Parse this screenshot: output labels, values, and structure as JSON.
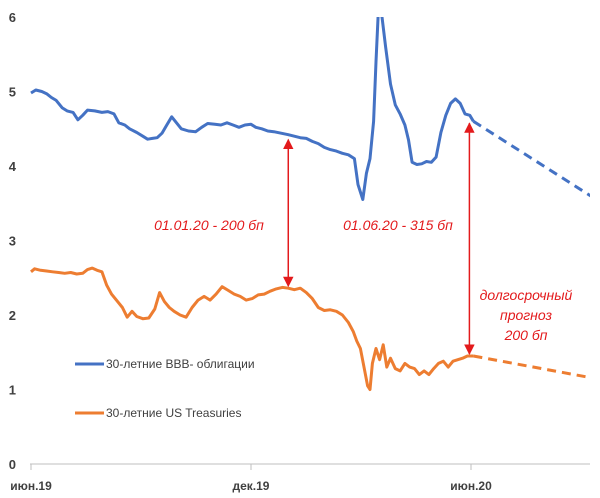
{
  "chart_data": {
    "type": "line",
    "title": "",
    "xlabel": "",
    "ylabel": "",
    "ylim": [
      0,
      6
    ],
    "yticks": [
      "0",
      "1",
      "2",
      "3",
      "4",
      "5",
      "6"
    ],
    "xticks": [
      {
        "label": "июн.19",
        "x": "2019-06"
      },
      {
        "label": "дек.19",
        "x": "2019-12"
      },
      {
        "label": "июн.20",
        "x": "2020-06"
      }
    ],
    "grid": false,
    "legend_position": "lower-left",
    "series": [
      {
        "name": "30-летние BBB- облигации",
        "color": "#4472c4",
        "style": "solid",
        "points": [
          [
            "2019-06-01",
            4.98
          ],
          [
            "2019-06-05",
            5.02
          ],
          [
            "2019-06-10",
            5.0
          ],
          [
            "2019-06-14",
            4.97
          ],
          [
            "2019-06-18",
            4.92
          ],
          [
            "2019-06-22",
            4.88
          ],
          [
            "2019-06-27",
            4.78
          ],
          [
            "2019-07-01",
            4.74
          ],
          [
            "2019-07-06",
            4.72
          ],
          [
            "2019-07-10",
            4.62
          ],
          [
            "2019-07-14",
            4.68
          ],
          [
            "2019-07-18",
            4.75
          ],
          [
            "2019-07-24",
            4.74
          ],
          [
            "2019-07-30",
            4.72
          ],
          [
            "2019-08-04",
            4.73
          ],
          [
            "2019-08-09",
            4.7
          ],
          [
            "2019-08-13",
            4.58
          ],
          [
            "2019-08-18",
            4.55
          ],
          [
            "2019-08-22",
            4.5
          ],
          [
            "2019-08-28",
            4.45
          ],
          [
            "2019-09-02",
            4.4
          ],
          [
            "2019-09-06",
            4.36
          ],
          [
            "2019-09-10",
            4.37
          ],
          [
            "2019-09-14",
            4.38
          ],
          [
            "2019-09-18",
            4.44
          ],
          [
            "2019-09-22",
            4.55
          ],
          [
            "2019-09-26",
            4.66
          ],
          [
            "2019-09-30",
            4.58
          ],
          [
            "2019-10-04",
            4.5
          ],
          [
            "2019-10-10",
            4.47
          ],
          [
            "2019-10-16",
            4.46
          ],
          [
            "2019-10-21",
            4.52
          ],
          [
            "2019-10-26",
            4.57
          ],
          [
            "2019-11-01",
            4.56
          ],
          [
            "2019-11-06",
            4.55
          ],
          [
            "2019-11-11",
            4.58
          ],
          [
            "2019-11-16",
            4.55
          ],
          [
            "2019-11-21",
            4.52
          ],
          [
            "2019-11-26",
            4.55
          ],
          [
            "2019-12-01",
            4.56
          ],
          [
            "2019-12-05",
            4.52
          ],
          [
            "2019-12-10",
            4.5
          ],
          [
            "2019-12-15",
            4.47
          ],
          [
            "2019-12-20",
            4.46
          ],
          [
            "2019-12-26",
            4.44
          ],
          [
            "2020-01-01",
            4.42
          ],
          [
            "2020-01-06",
            4.4
          ],
          [
            "2020-01-11",
            4.38
          ],
          [
            "2020-01-16",
            4.37
          ],
          [
            "2020-01-21",
            4.33
          ],
          [
            "2020-01-26",
            4.3
          ],
          [
            "2020-01-31",
            4.25
          ],
          [
            "2020-02-05",
            4.22
          ],
          [
            "2020-02-10",
            4.2
          ],
          [
            "2020-02-15",
            4.17
          ],
          [
            "2020-02-20",
            4.15
          ],
          [
            "2020-02-25",
            4.1
          ],
          [
            "2020-02-28",
            3.75
          ],
          [
            "2020-03-03",
            3.55
          ],
          [
            "2020-03-06",
            3.9
          ],
          [
            "2020-03-09",
            4.1
          ],
          [
            "2020-03-12",
            4.6
          ],
          [
            "2020-03-14",
            5.4
          ],
          [
            "2020-03-16",
            6.1
          ],
          [
            "2020-03-19",
            6.0
          ],
          [
            "2020-03-22",
            5.6
          ],
          [
            "2020-03-26",
            5.1
          ],
          [
            "2020-03-30",
            4.82
          ],
          [
            "2020-04-03",
            4.7
          ],
          [
            "2020-04-07",
            4.55
          ],
          [
            "2020-04-10",
            4.35
          ],
          [
            "2020-04-13",
            4.05
          ],
          [
            "2020-04-17",
            4.02
          ],
          [
            "2020-04-21",
            4.03
          ],
          [
            "2020-04-25",
            4.06
          ],
          [
            "2020-04-29",
            4.05
          ],
          [
            "2020-05-03",
            4.12
          ],
          [
            "2020-05-07",
            4.45
          ],
          [
            "2020-05-11",
            4.68
          ],
          [
            "2020-05-15",
            4.84
          ],
          [
            "2020-05-19",
            4.9
          ],
          [
            "2020-05-23",
            4.84
          ],
          [
            "2020-05-27",
            4.7
          ],
          [
            "2020-05-31",
            4.68
          ],
          [
            "2020-06-03",
            4.6
          ]
        ]
      },
      {
        "name": "30-летние BBB- облигации (прогноз)",
        "color": "#4472c4",
        "style": "dashed",
        "points": [
          [
            "2020-06-03",
            4.6
          ],
          [
            "2020-11-01",
            3.05
          ]
        ]
      },
      {
        "name": "30-летние US Treasuries",
        "color": "#ed7d31",
        "style": "solid",
        "points": [
          [
            "2019-06-01",
            2.58
          ],
          [
            "2019-06-04",
            2.62
          ],
          [
            "2019-06-09",
            2.6
          ],
          [
            "2019-06-14",
            2.59
          ],
          [
            "2019-06-19",
            2.58
          ],
          [
            "2019-06-24",
            2.57
          ],
          [
            "2019-06-29",
            2.56
          ],
          [
            "2019-07-04",
            2.57
          ],
          [
            "2019-07-09",
            2.55
          ],
          [
            "2019-07-14",
            2.56
          ],
          [
            "2019-07-18",
            2.61
          ],
          [
            "2019-07-22",
            2.63
          ],
          [
            "2019-07-26",
            2.6
          ],
          [
            "2019-07-30",
            2.58
          ],
          [
            "2019-08-03",
            2.4
          ],
          [
            "2019-08-07",
            2.28
          ],
          [
            "2019-08-12",
            2.18
          ],
          [
            "2019-08-16",
            2.1
          ],
          [
            "2019-08-20",
            1.97
          ],
          [
            "2019-08-24",
            2.05
          ],
          [
            "2019-08-28",
            1.98
          ],
          [
            "2019-09-02",
            1.95
          ],
          [
            "2019-09-07",
            1.96
          ],
          [
            "2019-09-12",
            2.08
          ],
          [
            "2019-09-16",
            2.3
          ],
          [
            "2019-09-20",
            2.18
          ],
          [
            "2019-09-24",
            2.1
          ],
          [
            "2019-09-28",
            2.05
          ],
          [
            "2019-10-03",
            2.0
          ],
          [
            "2019-10-08",
            1.97
          ],
          [
            "2019-10-13",
            2.1
          ],
          [
            "2019-10-18",
            2.2
          ],
          [
            "2019-10-23",
            2.25
          ],
          [
            "2019-10-28",
            2.2
          ],
          [
            "2019-11-02",
            2.28
          ],
          [
            "2019-11-07",
            2.38
          ],
          [
            "2019-11-12",
            2.33
          ],
          [
            "2019-11-17",
            2.28
          ],
          [
            "2019-11-22",
            2.25
          ],
          [
            "2019-11-27",
            2.2
          ],
          [
            "2019-12-02",
            2.22
          ],
          [
            "2019-12-07",
            2.27
          ],
          [
            "2019-12-12",
            2.28
          ],
          [
            "2019-12-17",
            2.32
          ],
          [
            "2019-12-22",
            2.35
          ],
          [
            "2019-12-27",
            2.37
          ],
          [
            "2020-01-01",
            2.36
          ],
          [
            "2020-01-06",
            2.34
          ],
          [
            "2020-01-11",
            2.36
          ],
          [
            "2020-01-16",
            2.3
          ],
          [
            "2020-01-21",
            2.22
          ],
          [
            "2020-01-26",
            2.1
          ],
          [
            "2020-01-31",
            2.06
          ],
          [
            "2020-02-05",
            2.07
          ],
          [
            "2020-02-10",
            2.05
          ],
          [
            "2020-02-15",
            2.0
          ],
          [
            "2020-02-20",
            1.9
          ],
          [
            "2020-02-24",
            1.78
          ],
          [
            "2020-02-27",
            1.65
          ],
          [
            "2020-03-01",
            1.55
          ],
          [
            "2020-03-04",
            1.3
          ],
          [
            "2020-03-07",
            1.05
          ],
          [
            "2020-03-09",
            1.0
          ],
          [
            "2020-03-11",
            1.35
          ],
          [
            "2020-03-14",
            1.55
          ],
          [
            "2020-03-17",
            1.4
          ],
          [
            "2020-03-20",
            1.6
          ],
          [
            "2020-03-23",
            1.3
          ],
          [
            "2020-03-26",
            1.42
          ],
          [
            "2020-03-30",
            1.28
          ],
          [
            "2020-04-03",
            1.25
          ],
          [
            "2020-04-07",
            1.35
          ],
          [
            "2020-04-11",
            1.3
          ],
          [
            "2020-04-15",
            1.28
          ],
          [
            "2020-04-19",
            1.2
          ],
          [
            "2020-04-23",
            1.25
          ],
          [
            "2020-04-27",
            1.2
          ],
          [
            "2020-05-01",
            1.28
          ],
          [
            "2020-05-05",
            1.35
          ],
          [
            "2020-05-09",
            1.38
          ],
          [
            "2020-05-13",
            1.3
          ],
          [
            "2020-05-17",
            1.38
          ],
          [
            "2020-05-21",
            1.4
          ],
          [
            "2020-05-25",
            1.42
          ],
          [
            "2020-05-29",
            1.45
          ],
          [
            "2020-06-03",
            1.45
          ]
        ]
      },
      {
        "name": "30-летние US Treasuries (прогноз)",
        "color": "#ed7d31",
        "style": "dashed",
        "points": [
          [
            "2020-06-03",
            1.45
          ],
          [
            "2020-11-01",
            1.0
          ]
        ]
      }
    ],
    "annotations": [
      {
        "text": "01.01.20 - 200 бп",
        "x": "2020-01-01",
        "from": 2.36,
        "to": 4.38
      },
      {
        "text": "01.06.20 - 315 бп",
        "x": "2020-06-03",
        "from": 1.45,
        "to": 4.6
      },
      {
        "text": "долгосрочный прогноз 200 бп",
        "lines": [
          "долгосрочный",
          "прогноз",
          "200 бп"
        ],
        "x": "2020-11-01",
        "from": 1.0,
        "to": 3.05
      }
    ],
    "annotation_color": "#e31a1c"
  }
}
